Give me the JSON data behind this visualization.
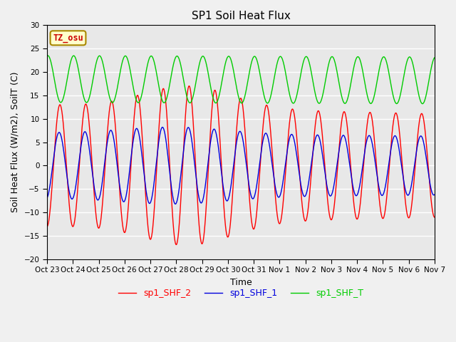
{
  "title": "SP1 Soil Heat Flux",
  "xlabel": "Time",
  "ylabel": "Soil Heat Flux (W/m2), SoilT (C)",
  "ylim": [
    -20,
    30
  ],
  "yticks": [
    -20,
    -15,
    -10,
    -5,
    0,
    5,
    10,
    15,
    20,
    25,
    30
  ],
  "plot_bg": "#e8e8e8",
  "fig_bg": "#f0f0f0",
  "tz_label": "TZ_osu",
  "legend": [
    "sp1_SHF_2",
    "sp1_SHF_1",
    "sp1_SHF_T"
  ],
  "line_colors": [
    "#ff0000",
    "#0000dd",
    "#00cc00"
  ],
  "x_tick_labels": [
    "Oct 23",
    "Oct 24",
    "Oct 25",
    "Oct 26",
    "Oct 27",
    "Oct 28",
    "Oct 29",
    "Oct 30",
    "Oct 31",
    "Nov 1",
    "Nov 2",
    "Nov 3",
    "Nov 4",
    "Nov 5",
    "Nov 6",
    "Nov 7"
  ],
  "n_days": 15,
  "points_per_day": 96
}
